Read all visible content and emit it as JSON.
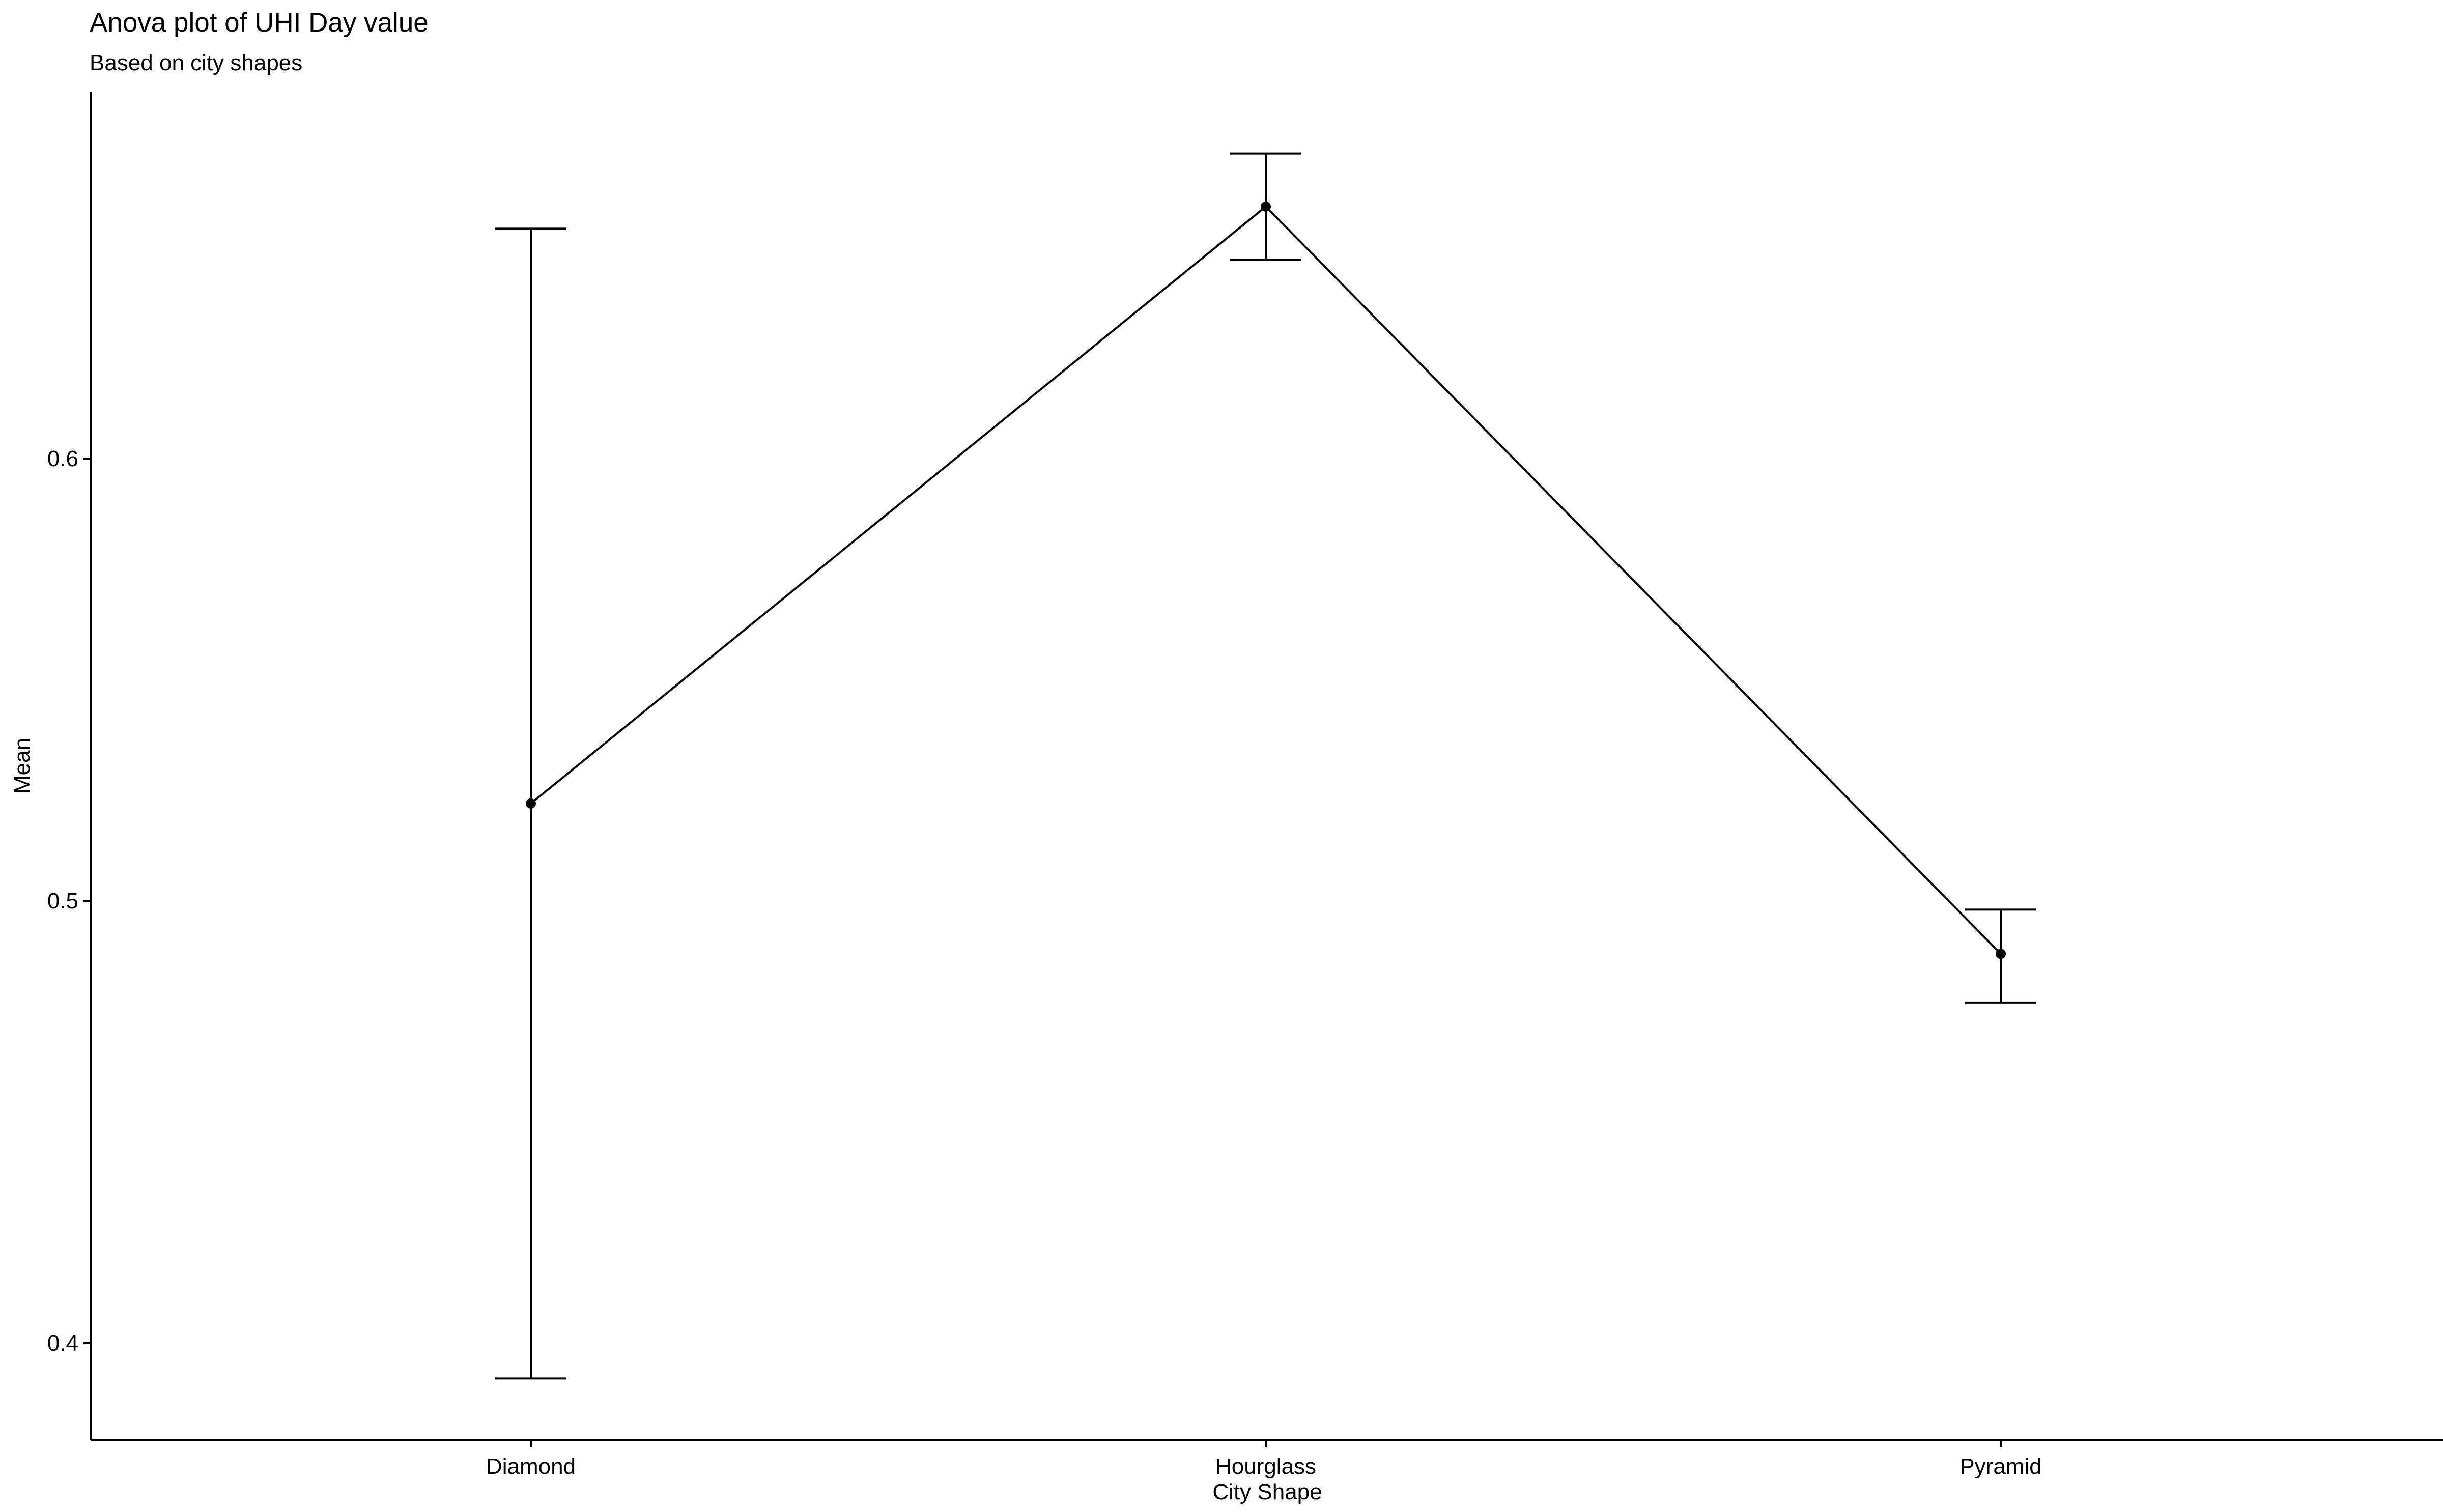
{
  "chart_data": {
    "type": "line",
    "title": "Anova plot of UHI Day value",
    "subtitle": "Based on city shapes",
    "xlabel": "City Shape",
    "ylabel": "Mean",
    "categories": [
      "Diamond",
      "Hourglass",
      "Pyramid"
    ],
    "series": [
      {
        "values": [
          0.522,
          0.657,
          0.488
        ],
        "error_lower": [
          0.392,
          0.645,
          0.477
        ],
        "error_upper": [
          0.652,
          0.669,
          0.498
        ]
      }
    ],
    "y_ticks": [
      0.4,
      0.5,
      0.6
    ],
    "y_tick_labels": [
      "0.4",
      "0.5",
      "0.6"
    ],
    "ylim": [
      0.378,
      0.683
    ],
    "grid": false,
    "legend": "none",
    "colors": {
      "line": "#000000",
      "background": "#ffffff"
    }
  }
}
